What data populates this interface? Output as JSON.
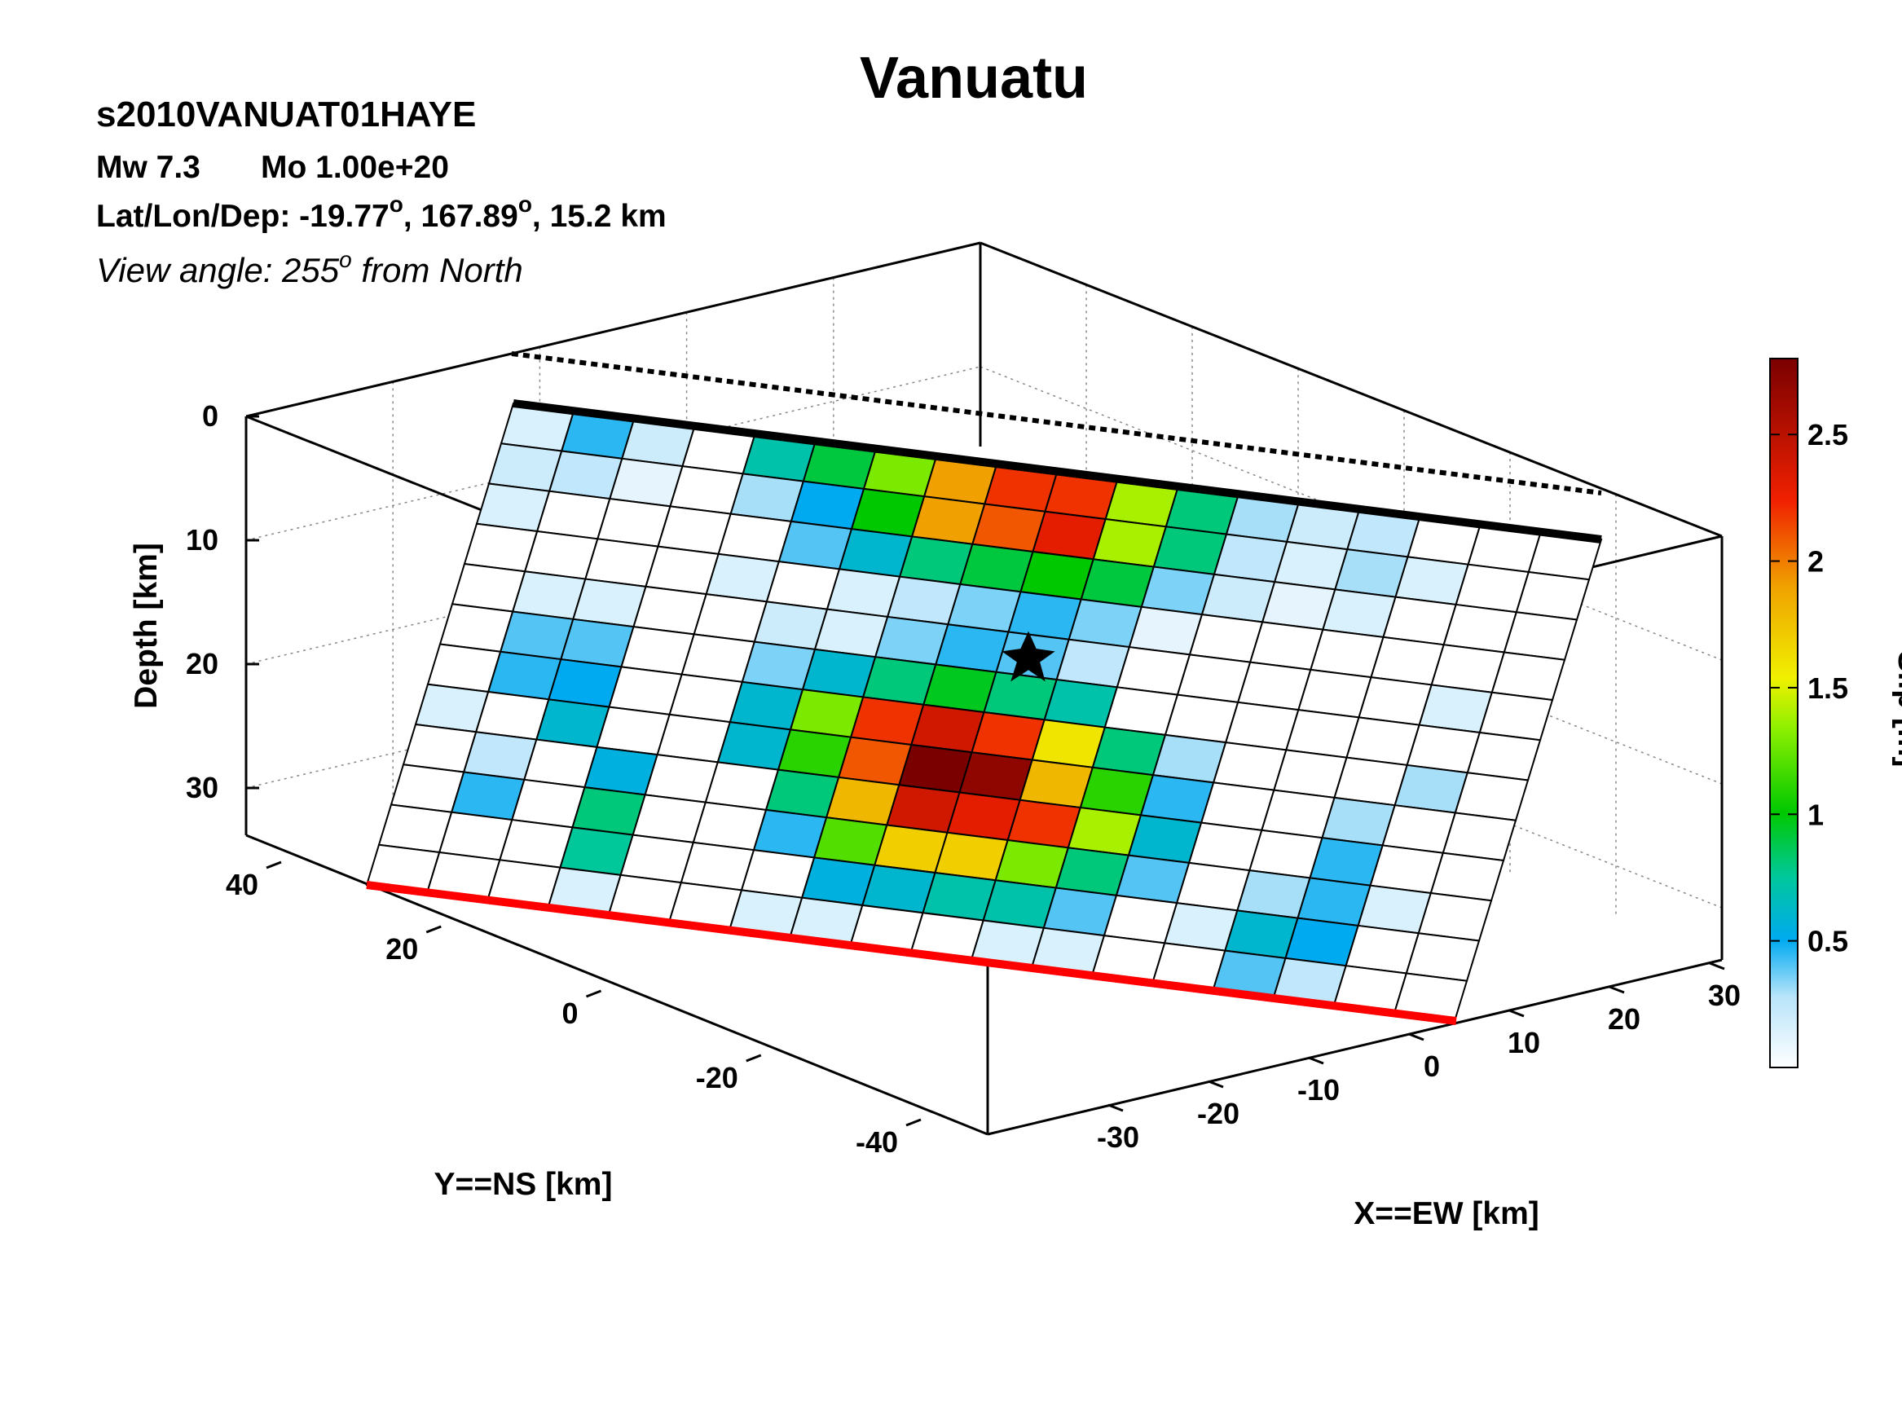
{
  "figure": {
    "title": "Vanuatu",
    "event_id": "s2010VANUAT01HAYE",
    "magnitude_label": "Mw 7.3",
    "moment_label": "Mo 1.00e+20",
    "location_prefix": "Lat/Lon/Dep: -19.77",
    "location_mid": ", 167.89",
    "location_suffix": ", 15.2 km",
    "degree_mark": "o",
    "view_prefix": "View angle: 255",
    "view_suffix": " from North"
  },
  "colors": {
    "surface_trace": "#000000",
    "bottom_edge": "#ff0000",
    "grid": "#888888"
  },
  "chart_data": {
    "type": "heatmap",
    "title": "Vanuatu",
    "xlabel": "X==EW [km]",
    "ylabel": "Y==NS [km]",
    "zlabel": "Depth [km]",
    "colorbar_label": "Slip [m]",
    "colorscale": "white-blue-green-yellow-red-darkred",
    "clim": [
      0,
      2.8
    ],
    "x_ticks": [
      "-30",
      "-20",
      "-10",
      "0",
      "10",
      "20",
      "30"
    ],
    "y_ticks": [
      "-40",
      "-20",
      "0",
      "20",
      "40"
    ],
    "z_ticks": [
      "0",
      "10",
      "20",
      "30"
    ],
    "colorbar_ticks": [
      "0.5",
      "1",
      "1.5",
      "2",
      "2.5"
    ],
    "grid": true,
    "hypocenter": {
      "x": 0,
      "y": 0,
      "depth": 15.2
    },
    "rows_top_to_bottom": 12,
    "cols_left_to_right": 18,
    "slip": [
      [
        0.15,
        0.45,
        0.2,
        0,
        0.7,
        0.9,
        1.3,
        1.9,
        2.2,
        2.2,
        1.4,
        0.8,
        0.3,
        0.2,
        0.25,
        0,
        0,
        0
      ],
      [
        0.2,
        0.25,
        0.1,
        0,
        0.3,
        0.5,
        1.0,
        1.9,
        2.1,
        2.3,
        1.4,
        0.8,
        0.25,
        0.15,
        0.3,
        0.15,
        0,
        0
      ],
      [
        0.15,
        0,
        0,
        0,
        0,
        0.4,
        0.6,
        0.8,
        0.9,
        1.0,
        0.9,
        0.35,
        0.2,
        0.1,
        0.15,
        0,
        0,
        0
      ],
      [
        0,
        0,
        0,
        0,
        0.15,
        0,
        0.15,
        0.25,
        0.35,
        0.45,
        0.35,
        0.1,
        0,
        0,
        0,
        0,
        0,
        0
      ],
      [
        0,
        0.15,
        0.15,
        0,
        0,
        0.2,
        0.15,
        0.35,
        0.45,
        0.4,
        0.25,
        0,
        0,
        0,
        0,
        0,
        0.15,
        0
      ],
      [
        0,
        0.4,
        0.4,
        0,
        0,
        0.35,
        0.6,
        0.8,
        0.95,
        0.8,
        0.7,
        0,
        0,
        0,
        0,
        0,
        0,
        0
      ],
      [
        0,
        0.45,
        0.5,
        0,
        0,
        0.6,
        1.3,
        2.2,
        2.4,
        2.2,
        1.6,
        0.8,
        0.3,
        0,
        0,
        0,
        0.3,
        0
      ],
      [
        0.15,
        0,
        0.6,
        0,
        0,
        0.6,
        1.1,
        2.1,
        2.8,
        2.7,
        1.8,
        1.1,
        0.45,
        0,
        0,
        0.3,
        0,
        0
      ],
      [
        0,
        0.25,
        0,
        0.55,
        0,
        0,
        0.8,
        1.8,
        2.4,
        2.3,
        2.2,
        1.4,
        0.6,
        0,
        0,
        0.45,
        0,
        0
      ],
      [
        0,
        0.45,
        0,
        0.8,
        0,
        0,
        0.45,
        1.2,
        1.7,
        1.7,
        1.3,
        0.8,
        0.4,
        0,
        0.3,
        0.45,
        0.15,
        0
      ],
      [
        0,
        0,
        0,
        0.75,
        0,
        0,
        0,
        0.55,
        0.6,
        0.7,
        0.7,
        0.4,
        0,
        0.15,
        0.6,
        0.5,
        0,
        0
      ],
      [
        0,
        0,
        0,
        0.15,
        0,
        0,
        0.15,
        0.15,
        0,
        0,
        0.15,
        0.15,
        0,
        0,
        0.4,
        0.25,
        0,
        0
      ]
    ]
  }
}
